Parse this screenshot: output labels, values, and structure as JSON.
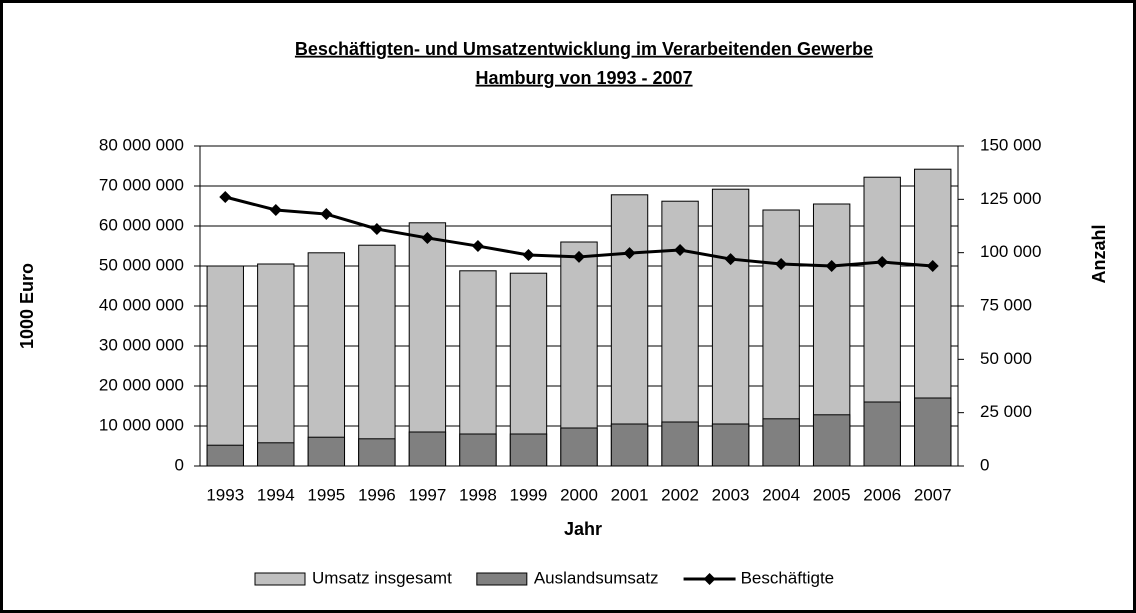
{
  "chart_data": {
    "type": "bar_line",
    "title": [
      "Beschäftigten- und Umsatzentwicklung im Verarbeitenden Gewerbe",
      "Hamburg  von 1993 - 2007"
    ],
    "x_label": "Jahr",
    "y_label": "1000 Euro",
    "y2_label": "Anzahl",
    "categories": [
      "1993",
      "1994",
      "1995",
      "1996",
      "1997",
      "1998",
      "1999",
      "2000",
      "2001",
      "2002",
      "2003",
      "2004",
      "2005",
      "2006",
      "2007"
    ],
    "series": [
      {
        "name": "Umsatz insgesamt",
        "type": "bar",
        "color": "#c0c0c0",
        "values": [
          50000000,
          50500000,
          53300000,
          55200000,
          60800000,
          48800000,
          48200000,
          56000000,
          67800000,
          66200000,
          69200000,
          64000000,
          65500000,
          72200000,
          74200000
        ]
      },
      {
        "name": "Auslandsumsatz",
        "type": "bar",
        "color": "#808080",
        "values": [
          5200000,
          5800000,
          7200000,
          6800000,
          8500000,
          8000000,
          8000000,
          9500000,
          10500000,
          11000000,
          10500000,
          11800000,
          12800000,
          16000000,
          17000000
        ]
      },
      {
        "name": "Beschäftigte",
        "type": "line",
        "axis": "y2",
        "color": "#000000",
        "values": [
          126100,
          120000,
          118100,
          111100,
          106900,
          103100,
          98900,
          98000,
          99800,
          101250,
          97000,
          94700,
          93750,
          95600,
          93750
        ]
      }
    ],
    "ylim": [
      0,
      80000000
    ],
    "yticks": [
      0,
      {
        "value": 10000000,
        "label": "10 000 000"
      },
      {
        "value": 20000000,
        "label": "20 000 000"
      },
      {
        "value": 30000000,
        "label": "30 000 000"
      },
      {
        "value": 40000000,
        "label": "40 000 000"
      },
      {
        "value": 50000000,
        "label": "50 000 000"
      },
      {
        "value": 60000000,
        "label": "60 000 000"
      },
      {
        "value": 70000000,
        "label": "70 000 000"
      },
      {
        "value": 80000000,
        "label": "80 000 000"
      }
    ],
    "y2lim": [
      0,
      150000
    ],
    "y2ticks": [
      0,
      {
        "value": 25000,
        "label": "25 000"
      },
      {
        "value": 50000,
        "label": "50 000"
      },
      {
        "value": 75000,
        "label": "75 000"
      },
      {
        "value": 100000,
        "label": "100 000"
      },
      {
        "value": 125000,
        "label": "125 000"
      },
      {
        "value": 150000,
        "label": "150 000"
      }
    ],
    "grid": true,
    "legend": "bottom"
  }
}
